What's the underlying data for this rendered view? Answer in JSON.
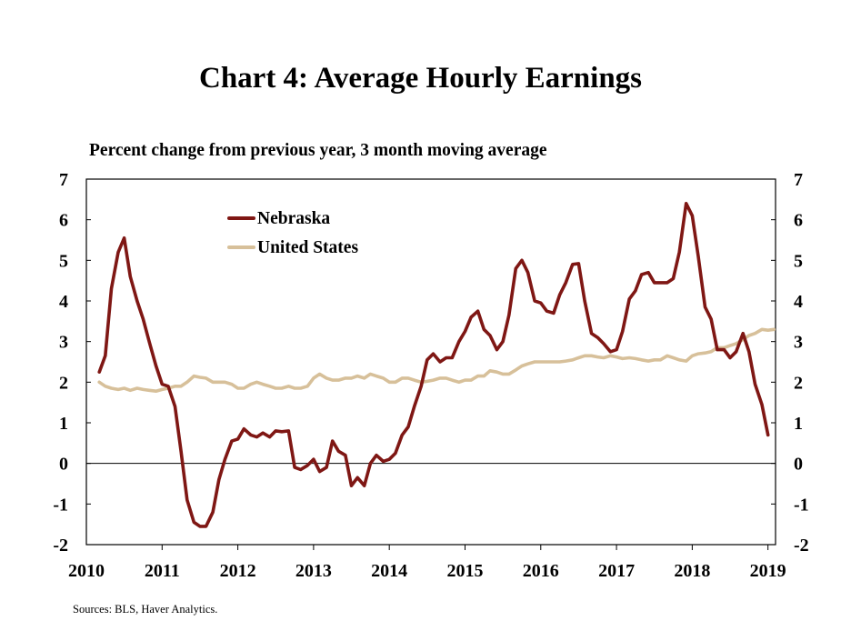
{
  "title": "Chart 4: Average Hourly Earnings",
  "subtitle": "Percent change from previous year, 3 month moving average",
  "source": "Sources: BLS, Haver Analytics.",
  "chart_data": {
    "type": "line",
    "title": "Chart 4: Average Hourly Earnings",
    "ylabel": "Percent change from previous year, 3 month moving average",
    "xlabel": "",
    "ylim": [
      -2,
      7
    ],
    "yticks": [
      -2,
      -1,
      0,
      1,
      2,
      3,
      4,
      5,
      6,
      7
    ],
    "xlim": [
      2010.0,
      2019.1
    ],
    "xticks": [
      "2010",
      "2011",
      "2012",
      "2013",
      "2014",
      "2015",
      "2016",
      "2017",
      "2018",
      "2019"
    ],
    "grid": false,
    "legend": "top-left",
    "series": [
      {
        "name": "Nebraska",
        "color": "#7f1714",
        "points": [
          [
            2010.17,
            2.25
          ],
          [
            2010.25,
            2.65
          ],
          [
            2010.33,
            4.3
          ],
          [
            2010.42,
            5.2
          ],
          [
            2010.5,
            5.55
          ],
          [
            2010.58,
            4.6
          ],
          [
            2010.67,
            4.0
          ],
          [
            2010.75,
            3.55
          ],
          [
            2010.83,
            3.0
          ],
          [
            2010.92,
            2.4
          ],
          [
            2011.0,
            1.95
          ],
          [
            2011.08,
            1.9
          ],
          [
            2011.17,
            1.4
          ],
          [
            2011.25,
            0.3
          ],
          [
            2011.33,
            -0.9
          ],
          [
            2011.42,
            -1.45
          ],
          [
            2011.5,
            -1.55
          ],
          [
            2011.58,
            -1.55
          ],
          [
            2011.67,
            -1.2
          ],
          [
            2011.75,
            -0.4
          ],
          [
            2011.83,
            0.1
          ],
          [
            2011.92,
            0.55
          ],
          [
            2012.0,
            0.6
          ],
          [
            2012.08,
            0.85
          ],
          [
            2012.17,
            0.7
          ],
          [
            2012.25,
            0.65
          ],
          [
            2012.33,
            0.75
          ],
          [
            2012.42,
            0.65
          ],
          [
            2012.5,
            0.8
          ],
          [
            2012.58,
            0.78
          ],
          [
            2012.67,
            0.8
          ],
          [
            2012.75,
            -0.1
          ],
          [
            2012.83,
            -0.15
          ],
          [
            2012.92,
            -0.05
          ],
          [
            2013.0,
            0.1
          ],
          [
            2013.08,
            -0.2
          ],
          [
            2013.17,
            -0.1
          ],
          [
            2013.25,
            0.55
          ],
          [
            2013.33,
            0.3
          ],
          [
            2013.42,
            0.2
          ],
          [
            2013.5,
            -0.55
          ],
          [
            2013.58,
            -0.35
          ],
          [
            2013.67,
            -0.55
          ],
          [
            2013.75,
            0.0
          ],
          [
            2013.83,
            0.2
          ],
          [
            2013.92,
            0.05
          ],
          [
            2014.0,
            0.1
          ],
          [
            2014.08,
            0.25
          ],
          [
            2014.17,
            0.7
          ],
          [
            2014.25,
            0.9
          ],
          [
            2014.33,
            1.4
          ],
          [
            2014.42,
            1.9
          ],
          [
            2014.5,
            2.55
          ],
          [
            2014.58,
            2.7
          ],
          [
            2014.67,
            2.5
          ],
          [
            2014.75,
            2.6
          ],
          [
            2014.83,
            2.6
          ],
          [
            2014.92,
            3.0
          ],
          [
            2015.0,
            3.25
          ],
          [
            2015.08,
            3.6
          ],
          [
            2015.17,
            3.75
          ],
          [
            2015.25,
            3.3
          ],
          [
            2015.33,
            3.15
          ],
          [
            2015.42,
            2.8
          ],
          [
            2015.5,
            3.0
          ],
          [
            2015.58,
            3.65
          ],
          [
            2015.67,
            4.8
          ],
          [
            2015.75,
            5.0
          ],
          [
            2015.83,
            4.7
          ],
          [
            2015.92,
            4.0
          ],
          [
            2016.0,
            3.95
          ],
          [
            2016.08,
            3.75
          ],
          [
            2016.17,
            3.7
          ],
          [
            2016.25,
            4.15
          ],
          [
            2016.33,
            4.45
          ],
          [
            2016.42,
            4.9
          ],
          [
            2016.5,
            4.92
          ],
          [
            2016.58,
            4.0
          ],
          [
            2016.67,
            3.2
          ],
          [
            2016.75,
            3.1
          ],
          [
            2016.83,
            2.95
          ],
          [
            2016.92,
            2.75
          ],
          [
            2017.0,
            2.8
          ],
          [
            2017.08,
            3.25
          ],
          [
            2017.17,
            4.05
          ],
          [
            2017.25,
            4.25
          ],
          [
            2017.33,
            4.65
          ],
          [
            2017.42,
            4.7
          ],
          [
            2017.5,
            4.45
          ],
          [
            2017.58,
            4.45
          ],
          [
            2017.67,
            4.45
          ],
          [
            2017.75,
            4.55
          ],
          [
            2017.83,
            5.2
          ],
          [
            2017.92,
            6.4
          ],
          [
            2018.0,
            6.1
          ],
          [
            2018.08,
            5.1
          ],
          [
            2018.17,
            3.85
          ],
          [
            2018.25,
            3.55
          ],
          [
            2018.33,
            2.8
          ],
          [
            2018.42,
            2.8
          ],
          [
            2018.5,
            2.6
          ],
          [
            2018.58,
            2.75
          ],
          [
            2018.67,
            3.2
          ],
          [
            2018.75,
            2.75
          ],
          [
            2018.83,
            1.95
          ],
          [
            2018.92,
            1.45
          ],
          [
            2019.0,
            0.7
          ]
        ]
      },
      {
        "name": "United States",
        "color": "#d7c09a",
        "points": [
          [
            2010.17,
            2.0
          ],
          [
            2010.25,
            1.9
          ],
          [
            2010.33,
            1.85
          ],
          [
            2010.42,
            1.82
          ],
          [
            2010.5,
            1.85
          ],
          [
            2010.58,
            1.8
          ],
          [
            2010.67,
            1.85
          ],
          [
            2010.75,
            1.82
          ],
          [
            2010.83,
            1.8
          ],
          [
            2010.92,
            1.78
          ],
          [
            2011.0,
            1.82
          ],
          [
            2011.08,
            1.85
          ],
          [
            2011.17,
            1.9
          ],
          [
            2011.25,
            1.9
          ],
          [
            2011.33,
            2.0
          ],
          [
            2011.42,
            2.15
          ],
          [
            2011.5,
            2.12
          ],
          [
            2011.58,
            2.1
          ],
          [
            2011.67,
            2.0
          ],
          [
            2011.75,
            2.0
          ],
          [
            2011.83,
            2.0
          ],
          [
            2011.92,
            1.95
          ],
          [
            2012.0,
            1.85
          ],
          [
            2012.08,
            1.85
          ],
          [
            2012.17,
            1.95
          ],
          [
            2012.25,
            2.0
          ],
          [
            2012.33,
            1.95
          ],
          [
            2012.42,
            1.9
          ],
          [
            2012.5,
            1.85
          ],
          [
            2012.58,
            1.85
          ],
          [
            2012.67,
            1.9
          ],
          [
            2012.75,
            1.85
          ],
          [
            2012.83,
            1.85
          ],
          [
            2012.92,
            1.9
          ],
          [
            2013.0,
            2.1
          ],
          [
            2013.08,
            2.2
          ],
          [
            2013.17,
            2.1
          ],
          [
            2013.25,
            2.05
          ],
          [
            2013.33,
            2.05
          ],
          [
            2013.42,
            2.1
          ],
          [
            2013.5,
            2.1
          ],
          [
            2013.58,
            2.15
          ],
          [
            2013.67,
            2.1
          ],
          [
            2013.75,
            2.2
          ],
          [
            2013.83,
            2.15
          ],
          [
            2013.92,
            2.1
          ],
          [
            2014.0,
            2.0
          ],
          [
            2014.08,
            2.0
          ],
          [
            2014.17,
            2.1
          ],
          [
            2014.25,
            2.1
          ],
          [
            2014.33,
            2.05
          ],
          [
            2014.42,
            2.0
          ],
          [
            2014.5,
            2.02
          ],
          [
            2014.58,
            2.05
          ],
          [
            2014.67,
            2.1
          ],
          [
            2014.75,
            2.1
          ],
          [
            2014.83,
            2.05
          ],
          [
            2014.92,
            2.0
          ],
          [
            2015.0,
            2.05
          ],
          [
            2015.08,
            2.05
          ],
          [
            2015.17,
            2.15
          ],
          [
            2015.25,
            2.15
          ],
          [
            2015.33,
            2.28
          ],
          [
            2015.42,
            2.25
          ],
          [
            2015.5,
            2.2
          ],
          [
            2015.58,
            2.2
          ],
          [
            2015.67,
            2.3
          ],
          [
            2015.75,
            2.4
          ],
          [
            2015.83,
            2.45
          ],
          [
            2015.92,
            2.5
          ],
          [
            2016.0,
            2.5
          ],
          [
            2016.08,
            2.5
          ],
          [
            2016.17,
            2.5
          ],
          [
            2016.25,
            2.5
          ],
          [
            2016.33,
            2.52
          ],
          [
            2016.42,
            2.55
          ],
          [
            2016.5,
            2.6
          ],
          [
            2016.58,
            2.65
          ],
          [
            2016.67,
            2.65
          ],
          [
            2016.75,
            2.62
          ],
          [
            2016.83,
            2.6
          ],
          [
            2016.92,
            2.65
          ],
          [
            2017.0,
            2.62
          ],
          [
            2017.08,
            2.58
          ],
          [
            2017.17,
            2.6
          ],
          [
            2017.25,
            2.58
          ],
          [
            2017.33,
            2.55
          ],
          [
            2017.42,
            2.52
          ],
          [
            2017.5,
            2.55
          ],
          [
            2017.58,
            2.55
          ],
          [
            2017.67,
            2.65
          ],
          [
            2017.75,
            2.6
          ],
          [
            2017.83,
            2.55
          ],
          [
            2017.92,
            2.52
          ],
          [
            2018.0,
            2.65
          ],
          [
            2018.08,
            2.7
          ],
          [
            2018.17,
            2.72
          ],
          [
            2018.25,
            2.75
          ],
          [
            2018.33,
            2.85
          ],
          [
            2018.42,
            2.85
          ],
          [
            2018.5,
            2.9
          ],
          [
            2018.58,
            2.95
          ],
          [
            2018.67,
            3.05
          ],
          [
            2018.75,
            3.15
          ],
          [
            2018.83,
            3.2
          ],
          [
            2018.92,
            3.3
          ],
          [
            2019.0,
            3.28
          ],
          [
            2019.08,
            3.3
          ]
        ]
      }
    ]
  }
}
